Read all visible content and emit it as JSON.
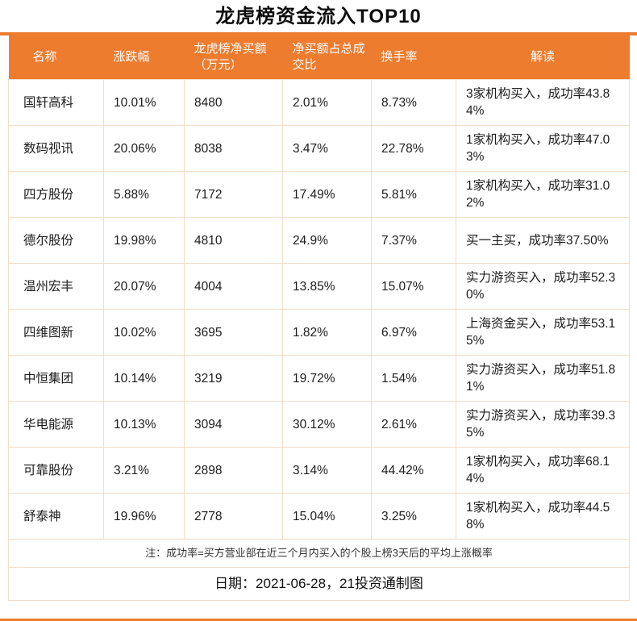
{
  "title": "龙虎榜资金流入TOP10",
  "colors": {
    "accent": "#ED7C2F",
    "header_text": "#FFFFFF",
    "grid_line": "#F2DDC9"
  },
  "chart_data": {
    "type": "table",
    "title": "龙虎榜资金流入TOP10",
    "columns": [
      "名称",
      "涨跌幅",
      "龙虎榜净买额（万元）",
      "净买额占总成交比",
      "换手率",
      "解读"
    ],
    "rows": [
      [
        "国轩高科",
        "10.01%",
        "8480",
        "2.01%",
        "8.73%",
        "3家机构买入，成功率43.84%"
      ],
      [
        "数码视讯",
        "20.06%",
        "8038",
        "3.47%",
        "22.78%",
        "1家机构买入，成功率47.03%"
      ],
      [
        "四方股份",
        "5.88%",
        "7172",
        "17.49%",
        "5.81%",
        "1家机构买入，成功率31.02%"
      ],
      [
        "德尔股份",
        "19.98%",
        "4810",
        "24.9%",
        "7.37%",
        "买一主买，成功率37.50%"
      ],
      [
        "温州宏丰",
        "20.07%",
        "4004",
        "13.85%",
        "15.07%",
        "实力游资买入，成功率52.30%"
      ],
      [
        "四维图新",
        "10.02%",
        "3695",
        "1.82%",
        "6.97%",
        "上海资金买入，成功率53.15%"
      ],
      [
        "中恒集团",
        "10.14%",
        "3219",
        "19.72%",
        "1.54%",
        "实力游资买入，成功率51.81%"
      ],
      [
        "华电能源",
        "10.13%",
        "3094",
        "30.12%",
        "2.61%",
        "实力游资买入，成功率39.35%"
      ],
      [
        "可靠股份",
        "3.21%",
        "2898",
        "3.14%",
        "44.42%",
        "1家机构买入，成功率68.14%"
      ],
      [
        "舒泰神",
        "19.96%",
        "2778",
        "15.04%",
        "3.25%",
        "1家机构买入，成功率44.58%"
      ]
    ]
  },
  "footer": {
    "note": "注：成功率=买方营业部在近三个月内买入的个股上榜3天后的平均上涨概率",
    "date_line": "日期：2021-06-28，21投资通制图"
  }
}
